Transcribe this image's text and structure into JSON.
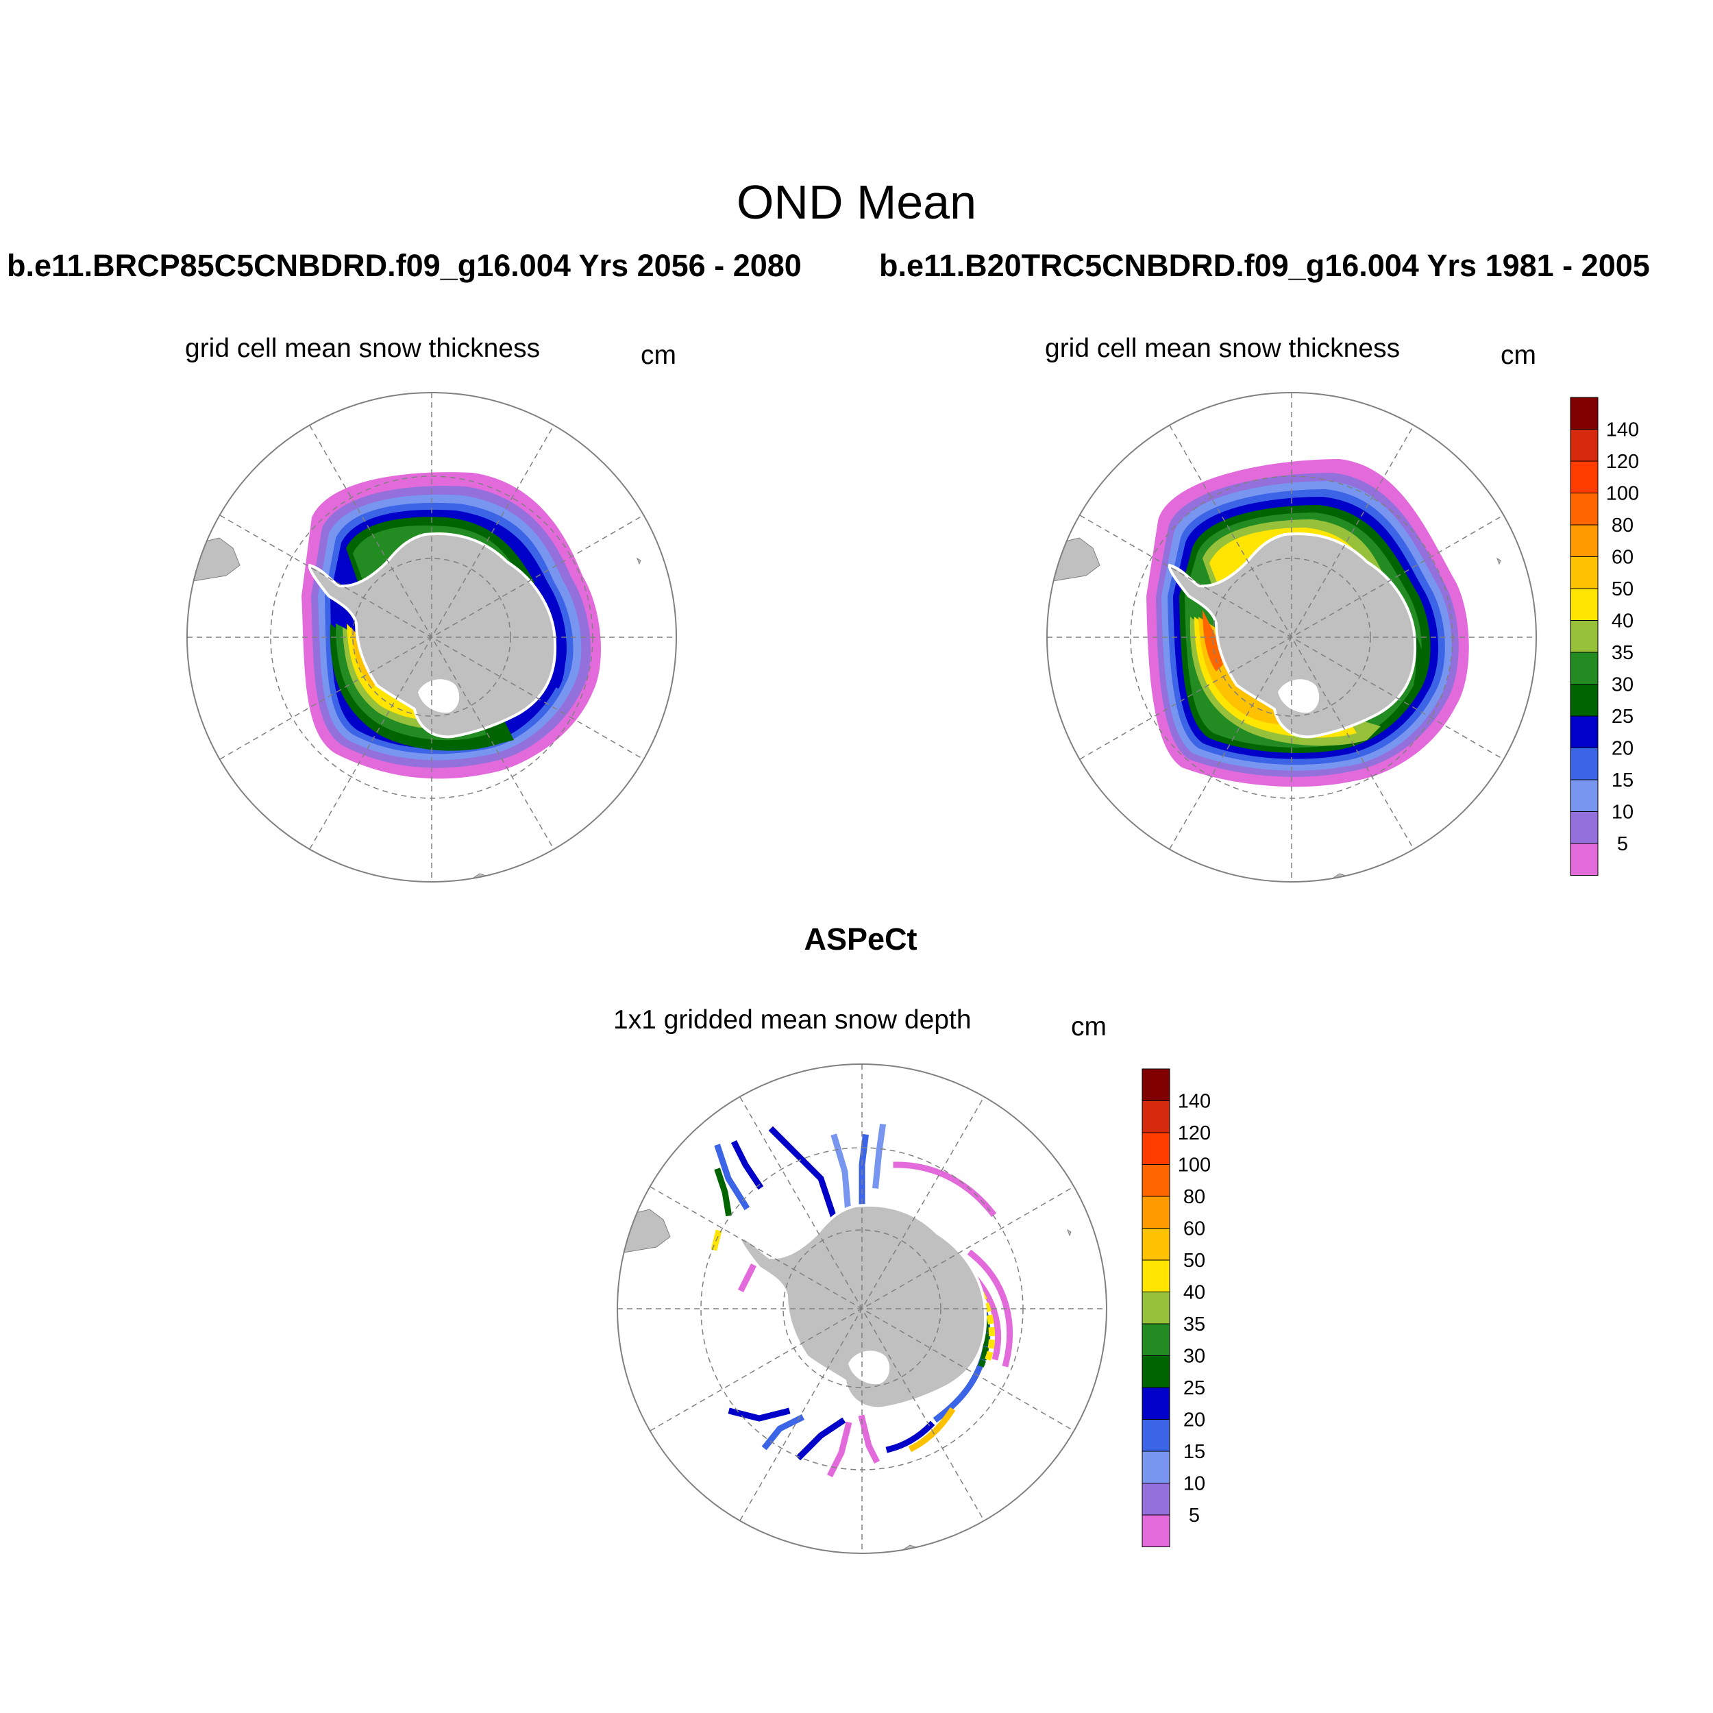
{
  "figure": {
    "title": "OND Mean",
    "panel_left_case": "b.e11.BRCP85C5CNBDRD.f09_g16.004  Yrs 2056 - 2080",
    "panel_right_case": "b.e11.B20TRC5CNBDRD.f09_g16.004  Yrs 1981 - 2005",
    "obs_title": "ASPeCt"
  },
  "panels": [
    {
      "name": "left",
      "subtitle": "grid cell mean snow thickness",
      "units": "cm"
    },
    {
      "name": "right",
      "subtitle": "grid cell mean snow thickness",
      "units": "cm"
    },
    {
      "name": "bottom",
      "subtitle": "1x1 gridded mean snow depth",
      "units": "cm"
    }
  ],
  "colorbar": {
    "labels": [
      "140",
      "120",
      "100",
      "80",
      "60",
      "50",
      "40",
      "35",
      "30",
      "25",
      "20",
      "15",
      "10",
      "5"
    ],
    "colors_top_to_bottom": [
      "#800000",
      "#d62a0e",
      "#ff3c00",
      "#ff6600",
      "#ff9a00",
      "#ffc200",
      "#ffe500",
      "#98c13b",
      "#228b22",
      "#006400",
      "#0000c8",
      "#3c64e6",
      "#7896f0",
      "#9370db",
      "#e36adb"
    ]
  },
  "map_colors": {
    "land": "#c0c0c0",
    "grid_line": "#808080"
  }
}
